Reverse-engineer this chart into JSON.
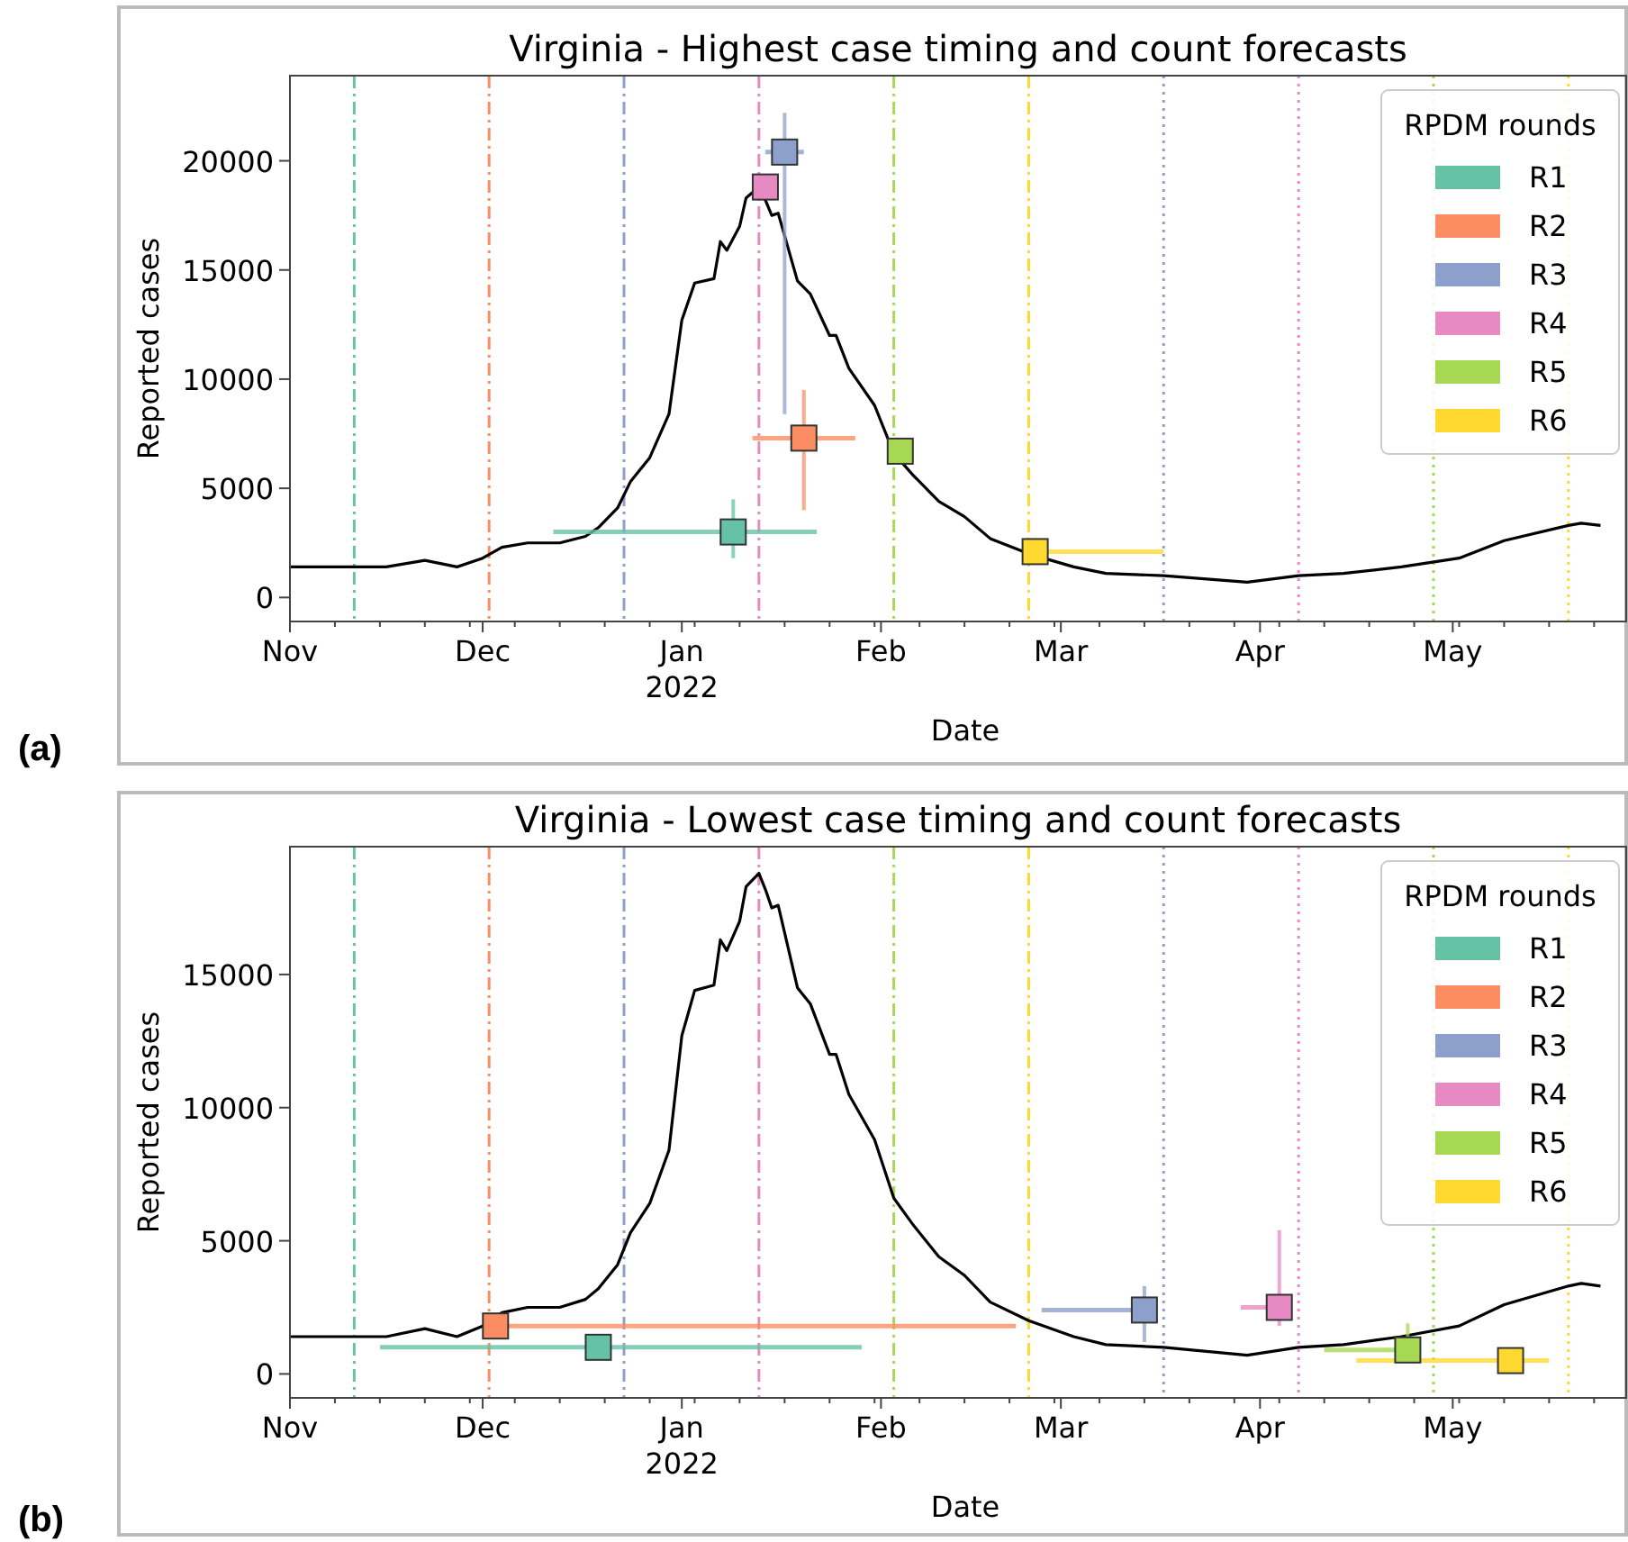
{
  "chart_data": [
    {
      "type": "scatter",
      "title": "Virginia - Highest case timing and count forecasts",
      "xlabel": "Date",
      "ylabel": "Reported cases",
      "legend_title": "RPDM rounds",
      "legend": "top right",
      "grid": false,
      "annotations": [
        "(a)"
      ],
      "xlim": [
        "2021-11-01",
        "2022-05-28"
      ],
      "xticks": [
        {
          "value": "2021-11-01",
          "label": "Nov"
        },
        {
          "value": "2021-11-08",
          "label": null
        },
        {
          "value": "2021-11-15",
          "label": null
        },
        {
          "value": "2021-11-22",
          "label": null
        },
        {
          "value": "2021-11-29",
          "label": null
        },
        {
          "value": "2021-12-01",
          "label": "Dec"
        },
        {
          "value": "2021-12-06",
          "label": null
        },
        {
          "value": "2021-12-13",
          "label": null
        },
        {
          "value": "2021-12-20",
          "label": null
        },
        {
          "value": "2021-12-27",
          "label": null
        },
        {
          "value": "2022-01-01",
          "label": "Jan\n2022"
        },
        {
          "value": "2022-01-03",
          "label": null
        },
        {
          "value": "2022-01-10",
          "label": null
        },
        {
          "value": "2022-01-17",
          "label": null
        },
        {
          "value": "2022-01-24",
          "label": null
        },
        {
          "value": "2022-01-31",
          "label": null
        },
        {
          "value": "2022-02-01",
          "label": "Feb"
        },
        {
          "value": "2022-02-07",
          "label": null
        },
        {
          "value": "2022-02-14",
          "label": null
        },
        {
          "value": "2022-02-21",
          "label": null
        },
        {
          "value": "2022-02-28",
          "label": null
        },
        {
          "value": "2022-03-01",
          "label": "Mar"
        },
        {
          "value": "2022-03-07",
          "label": null
        },
        {
          "value": "2022-03-14",
          "label": null
        },
        {
          "value": "2022-03-21",
          "label": null
        },
        {
          "value": "2022-03-28",
          "label": null
        },
        {
          "value": "2022-04-01",
          "label": "Apr"
        },
        {
          "value": "2022-04-04",
          "label": null
        },
        {
          "value": "2022-04-11",
          "label": null
        },
        {
          "value": "2022-04-18",
          "label": null
        },
        {
          "value": "2022-04-25",
          "label": null
        },
        {
          "value": "2022-05-01",
          "label": "May"
        },
        {
          "value": "2022-05-02",
          "label": null
        },
        {
          "value": "2022-05-09",
          "label": null
        },
        {
          "value": "2022-05-16",
          "label": null
        },
        {
          "value": "2022-05-23",
          "label": null
        }
      ],
      "ylim": [
        -1100,
        23900
      ],
      "yticks": [
        0,
        5000,
        10000,
        15000,
        20000
      ],
      "ref_lines": [
        {
          "axis": "x",
          "value": "2021-11-11",
          "color": "#66c2a5",
          "line_style": "dashdot"
        },
        {
          "axis": "x",
          "value": "2021-12-02",
          "color": "#fc8d62",
          "line_style": "dashdot"
        },
        {
          "axis": "x",
          "value": "2021-12-23",
          "color": "#8da0cb",
          "line_style": "dashdot"
        },
        {
          "axis": "x",
          "value": "2022-01-13",
          "color": "#e78ac3",
          "line_style": "dashdot"
        },
        {
          "axis": "x",
          "value": "2022-02-03",
          "color": "#a6d854",
          "line_style": "dashdot"
        },
        {
          "axis": "x",
          "value": "2022-02-24",
          "color": "#ffd92f",
          "line_style": "dashdot"
        },
        {
          "axis": "x",
          "value": "2022-03-17",
          "color": "#8da0cb",
          "line_style": "dotted"
        },
        {
          "axis": "x",
          "value": "2022-04-07",
          "color": "#e78ac3",
          "line_style": "dotted"
        },
        {
          "axis": "x",
          "value": "2022-04-28",
          "color": "#a6d854",
          "line_style": "dotted"
        },
        {
          "axis": "x",
          "value": "2022-05-19",
          "color": "#ffd92f",
          "line_style": "dotted"
        }
      ],
      "series": [
        {
          "type": "line",
          "color": "#000000",
          "line_style": "solid",
          "x": [
            "2021-11-01",
            "2021-11-16",
            "2021-11-22",
            "2021-11-27",
            "2021-12-01",
            "2021-12-04",
            "2021-12-08",
            "2021-12-13",
            "2021-12-17",
            "2021-12-19",
            "2021-12-22",
            "2021-12-24",
            "2021-12-27",
            "2021-12-30",
            "2022-01-01",
            "2022-01-03",
            "2022-01-06",
            "2022-01-07",
            "2022-01-08",
            "2022-01-10",
            "2022-01-11",
            "2022-01-13",
            "2022-01-14",
            "2022-01-15",
            "2022-01-16",
            "2022-01-19",
            "2022-01-21",
            "2022-01-24",
            "2022-01-25",
            "2022-01-27",
            "2022-01-31",
            "2022-02-03",
            "2022-02-06",
            "2022-02-10",
            "2022-02-14",
            "2022-02-18",
            "2022-02-24",
            "2022-03-03",
            "2022-03-08",
            "2022-03-17",
            "2022-03-30",
            "2022-04-07",
            "2022-04-14",
            "2022-04-23",
            "2022-05-02",
            "2022-05-09",
            "2022-05-19",
            "2022-05-21",
            "2022-05-24"
          ],
          "values": [
            1400,
            1400,
            1700,
            1400,
            1800,
            2300,
            2500,
            2500,
            2800,
            3200,
            4100,
            5300,
            6400,
            8400,
            12700,
            14400,
            14600,
            16300,
            15900,
            17000,
            18300,
            18800,
            18200,
            17500,
            17600,
            14500,
            13900,
            12000,
            12000,
            10500,
            8800,
            6600,
            5600,
            4400,
            3700,
            2700,
            2000,
            1400,
            1100,
            1000,
            700,
            1000,
            1100,
            1400,
            1800,
            2600,
            3300,
            3400,
            3300
          ]
        },
        {
          "type": "line",
          "color": "#66c2a5",
          "x": [
            "2021-12-12",
            "2022-01-22"
          ],
          "values": [
            3000,
            3000
          ]
        },
        {
          "type": "line",
          "color": "#fc8d62",
          "x": [
            "2022-01-12",
            "2022-01-28"
          ],
          "values": [
            7300,
            7300
          ]
        },
        {
          "type": "line",
          "color": "#8da0cb",
          "x": [
            "2022-01-14",
            "2022-01-20"
          ],
          "values": [
            20400,
            20400
          ]
        },
        {
          "type": "line",
          "color": "#ffd92f",
          "x": [
            "2022-02-25",
            "2022-03-17"
          ],
          "values": [
            2100,
            2100
          ]
        },
        {
          "name": "R1",
          "color": "#66c2a5",
          "marker": "square",
          "x": [
            "2022-01-09"
          ],
          "values": [
            3000
          ],
          "errors": [
            [
              1800,
              4500
            ]
          ]
        },
        {
          "name": "R2",
          "color": "#fc8d62",
          "marker": "square",
          "x": [
            "2022-01-20"
          ],
          "values": [
            7300
          ],
          "errors": [
            [
              4000,
              9500
            ]
          ]
        },
        {
          "name": "R3",
          "color": "#8da0cb",
          "marker": "square",
          "x": [
            "2022-01-17"
          ],
          "values": [
            20400
          ],
          "errors": [
            [
              8400,
              22200
            ]
          ]
        },
        {
          "name": "R4",
          "color": "#e78ac3",
          "marker": "square",
          "x": [
            "2022-01-14"
          ],
          "values": [
            18800
          ],
          "errors": [
            null
          ]
        },
        {
          "name": "R5",
          "color": "#a6d854",
          "marker": "square",
          "x": [
            "2022-02-04"
          ],
          "values": [
            6700
          ],
          "errors": [
            null
          ]
        },
        {
          "name": "R6",
          "color": "#ffd92f",
          "marker": "square",
          "x": [
            "2022-02-25"
          ],
          "values": [
            2100
          ],
          "errors": [
            null
          ]
        }
      ]
    },
    {
      "type": "scatter",
      "title": "Virginia - Lowest case timing and count forecasts",
      "xlabel": "Date",
      "ylabel": "Reported cases",
      "legend_title": "RPDM rounds",
      "legend": "top right",
      "grid": false,
      "annotations": [
        "(b)"
      ],
      "xlim": [
        "2021-11-01",
        "2022-05-28"
      ],
      "xticks": [
        {
          "value": "2021-11-01",
          "label": "Nov"
        },
        {
          "value": "2021-11-08",
          "label": null
        },
        {
          "value": "2021-11-15",
          "label": null
        },
        {
          "value": "2021-11-22",
          "label": null
        },
        {
          "value": "2021-11-29",
          "label": null
        },
        {
          "value": "2021-12-01",
          "label": "Dec"
        },
        {
          "value": "2021-12-06",
          "label": null
        },
        {
          "value": "2021-12-13",
          "label": null
        },
        {
          "value": "2021-12-20",
          "label": null
        },
        {
          "value": "2021-12-27",
          "label": null
        },
        {
          "value": "2022-01-01",
          "label": "Jan\n2022"
        },
        {
          "value": "2022-01-03",
          "label": null
        },
        {
          "value": "2022-01-10",
          "label": null
        },
        {
          "value": "2022-01-17",
          "label": null
        },
        {
          "value": "2022-01-24",
          "label": null
        },
        {
          "value": "2022-01-31",
          "label": null
        },
        {
          "value": "2022-02-01",
          "label": "Feb"
        },
        {
          "value": "2022-02-07",
          "label": null
        },
        {
          "value": "2022-02-14",
          "label": null
        },
        {
          "value": "2022-02-21",
          "label": null
        },
        {
          "value": "2022-02-28",
          "label": null
        },
        {
          "value": "2022-03-01",
          "label": "Mar"
        },
        {
          "value": "2022-03-07",
          "label": null
        },
        {
          "value": "2022-03-14",
          "label": null
        },
        {
          "value": "2022-03-21",
          "label": null
        },
        {
          "value": "2022-03-28",
          "label": null
        },
        {
          "value": "2022-04-01",
          "label": "Apr"
        },
        {
          "value": "2022-04-04",
          "label": null
        },
        {
          "value": "2022-04-11",
          "label": null
        },
        {
          "value": "2022-04-18",
          "label": null
        },
        {
          "value": "2022-04-25",
          "label": null
        },
        {
          "value": "2022-05-01",
          "label": "May"
        },
        {
          "value": "2022-05-02",
          "label": null
        },
        {
          "value": "2022-05-09",
          "label": null
        },
        {
          "value": "2022-05-16",
          "label": null
        },
        {
          "value": "2022-05-23",
          "label": null
        }
      ],
      "ylim": [
        -900,
        19800
      ],
      "yticks": [
        0,
        5000,
        10000,
        15000
      ],
      "ref_lines": [
        {
          "axis": "x",
          "value": "2021-11-11",
          "color": "#66c2a5",
          "line_style": "dashdot"
        },
        {
          "axis": "x",
          "value": "2021-12-02",
          "color": "#fc8d62",
          "line_style": "dashdot"
        },
        {
          "axis": "x",
          "value": "2021-12-23",
          "color": "#8da0cb",
          "line_style": "dashdot"
        },
        {
          "axis": "x",
          "value": "2022-01-13",
          "color": "#e78ac3",
          "line_style": "dashdot"
        },
        {
          "axis": "x",
          "value": "2022-02-03",
          "color": "#a6d854",
          "line_style": "dashdot"
        },
        {
          "axis": "x",
          "value": "2022-02-24",
          "color": "#ffd92f",
          "line_style": "dashdot"
        },
        {
          "axis": "x",
          "value": "2022-03-17",
          "color": "#8da0cb",
          "line_style": "dotted"
        },
        {
          "axis": "x",
          "value": "2022-04-07",
          "color": "#e78ac3",
          "line_style": "dotted"
        },
        {
          "axis": "x",
          "value": "2022-04-28",
          "color": "#a6d854",
          "line_style": "dotted"
        },
        {
          "axis": "x",
          "value": "2022-05-19",
          "color": "#ffd92f",
          "line_style": "dotted"
        }
      ],
      "series": [
        {
          "type": "line",
          "color": "#000000",
          "line_style": "solid",
          "x": [
            "2021-11-01",
            "2021-11-16",
            "2021-11-22",
            "2021-11-27",
            "2021-12-01",
            "2021-12-04",
            "2021-12-08",
            "2021-12-13",
            "2021-12-17",
            "2021-12-19",
            "2021-12-22",
            "2021-12-24",
            "2021-12-27",
            "2021-12-30",
            "2022-01-01",
            "2022-01-03",
            "2022-01-06",
            "2022-01-07",
            "2022-01-08",
            "2022-01-10",
            "2022-01-11",
            "2022-01-13",
            "2022-01-14",
            "2022-01-15",
            "2022-01-16",
            "2022-01-19",
            "2022-01-21",
            "2022-01-24",
            "2022-01-25",
            "2022-01-27",
            "2022-01-31",
            "2022-02-03",
            "2022-02-06",
            "2022-02-10",
            "2022-02-14",
            "2022-02-18",
            "2022-02-24",
            "2022-03-03",
            "2022-03-08",
            "2022-03-17",
            "2022-03-30",
            "2022-04-07",
            "2022-04-14",
            "2022-04-23",
            "2022-05-02",
            "2022-05-09",
            "2022-05-19",
            "2022-05-21",
            "2022-05-24"
          ],
          "values": [
            1400,
            1400,
            1700,
            1400,
            1800,
            2300,
            2500,
            2500,
            2800,
            3200,
            4100,
            5300,
            6400,
            8400,
            12700,
            14400,
            14600,
            16300,
            15900,
            17000,
            18300,
            18800,
            18200,
            17500,
            17600,
            14500,
            13900,
            12000,
            12000,
            10500,
            8800,
            6600,
            5600,
            4400,
            3700,
            2700,
            2000,
            1400,
            1100,
            1000,
            700,
            1000,
            1100,
            1400,
            1800,
            2600,
            3300,
            3400,
            3300
          ]
        },
        {
          "type": "line",
          "color": "#66c2a5",
          "x": [
            "2021-11-15",
            "2022-01-29"
          ],
          "values": [
            1000,
            1000
          ]
        },
        {
          "type": "line",
          "color": "#fc8d62",
          "x": [
            "2021-12-03",
            "2022-02-22"
          ],
          "values": [
            1800,
            1800
          ]
        },
        {
          "type": "line",
          "color": "#8da0cb",
          "x": [
            "2022-02-26",
            "2022-03-16"
          ],
          "values": [
            2400,
            2400
          ]
        },
        {
          "type": "line",
          "color": "#e78ac3",
          "x": [
            "2022-03-29",
            "2022-04-06"
          ],
          "values": [
            2500,
            2500
          ]
        },
        {
          "type": "line",
          "color": "#a6d854",
          "x": [
            "2022-04-11",
            "2022-04-26"
          ],
          "values": [
            900,
            900
          ]
        },
        {
          "type": "line",
          "color": "#ffd92f",
          "x": [
            "2022-04-16",
            "2022-05-16"
          ],
          "values": [
            500,
            500
          ]
        },
        {
          "name": "R1",
          "color": "#66c2a5",
          "marker": "square",
          "x": [
            "2021-12-19"
          ],
          "values": [
            1000
          ],
          "errors": [
            null
          ]
        },
        {
          "name": "R2",
          "color": "#fc8d62",
          "marker": "square",
          "x": [
            "2021-12-03"
          ],
          "values": [
            1800
          ],
          "errors": [
            null
          ]
        },
        {
          "name": "R3",
          "color": "#8da0cb",
          "marker": "square",
          "x": [
            "2022-03-14"
          ],
          "values": [
            2400
          ],
          "errors": [
            [
              1200,
              3300
            ]
          ]
        },
        {
          "name": "R4",
          "color": "#e78ac3",
          "marker": "square",
          "x": [
            "2022-04-04"
          ],
          "values": [
            2500
          ],
          "errors": [
            [
              1800,
              5400
            ]
          ]
        },
        {
          "name": "R5",
          "color": "#a6d854",
          "marker": "square",
          "x": [
            "2022-04-24"
          ],
          "values": [
            900
          ],
          "errors": [
            [
              600,
              1900
            ]
          ]
        },
        {
          "name": "R6",
          "color": "#ffd92f",
          "marker": "square",
          "x": [
            "2022-05-10"
          ],
          "values": [
            500
          ],
          "errors": [
            null
          ]
        }
      ]
    }
  ]
}
